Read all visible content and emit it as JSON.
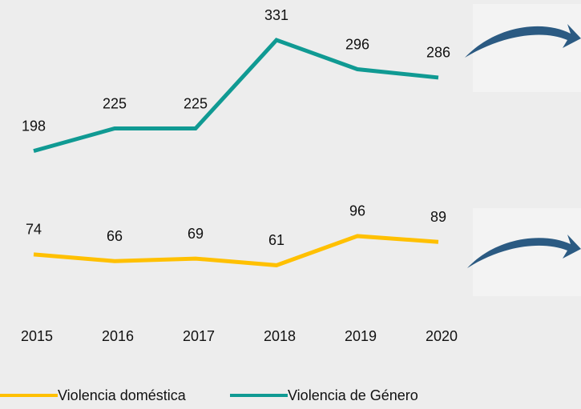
{
  "chart_data": {
    "type": "line",
    "categories": [
      "2015",
      "2016",
      "2017",
      "2018",
      "2019",
      "2020"
    ],
    "series": [
      {
        "name": "Violencia doméstica",
        "color": "#ffc000",
        "values": [
          74,
          66,
          69,
          61,
          96,
          89
        ]
      },
      {
        "name": "Violencia de Género",
        "color": "#109a93",
        "values": [
          198,
          225,
          225,
          331,
          296,
          286
        ]
      }
    ],
    "ylim": [
      0,
      379
    ],
    "grid": false
  }
}
